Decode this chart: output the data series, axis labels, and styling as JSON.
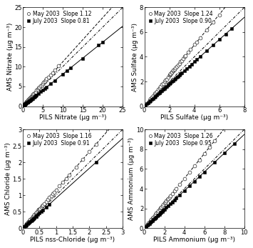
{
  "panels": [
    {
      "xlabel": "PILS Nitrate (μg m⁻³)",
      "ylabel": "AMS Nitrate (μg m⁻³)",
      "xlim": [
        0,
        25
      ],
      "ylim": [
        0,
        25
      ],
      "xticks": [
        0,
        5,
        10,
        15,
        20,
        25
      ],
      "yticks": [
        0,
        5,
        10,
        15,
        20,
        25
      ],
      "may_slope": 1.12,
      "july_slope": 0.81,
      "may_x": [
        0.1,
        0.15,
        0.2,
        0.25,
        0.3,
        0.35,
        0.4,
        0.5,
        0.5,
        0.6,
        0.7,
        0.8,
        0.9,
        1.0,
        1.1,
        1.2,
        1.3,
        1.5,
        1.6,
        1.8,
        2.0,
        2.1,
        2.3,
        2.5,
        2.5,
        2.7,
        3.0,
        3.2,
        3.5,
        3.8,
        4.0,
        4.2,
        4.5,
        4.8,
        5.0,
        5.2,
        5.5,
        5.8,
        6.0,
        6.5,
        7.0,
        7.5,
        8.0,
        9.0
      ],
      "may_y": [
        0.1,
        0.15,
        0.2,
        0.3,
        0.35,
        0.4,
        0.45,
        0.5,
        0.6,
        0.7,
        0.8,
        0.9,
        1.0,
        1.1,
        1.2,
        1.4,
        1.5,
        1.7,
        1.9,
        2.1,
        2.3,
        2.4,
        2.6,
        2.8,
        3.0,
        3.1,
        3.4,
        3.6,
        4.0,
        4.3,
        4.6,
        4.8,
        5.1,
        5.4,
        5.7,
        6.0,
        6.2,
        6.6,
        6.9,
        7.4,
        7.9,
        8.5,
        9.1,
        10.2
      ],
      "july_x": [
        0.1,
        0.2,
        0.3,
        0.4,
        0.5,
        0.6,
        0.7,
        0.8,
        0.9,
        1.0,
        1.2,
        1.3,
        1.5,
        1.6,
        1.8,
        2.0,
        2.2,
        2.4,
        2.5,
        2.8,
        3.0,
        3.2,
        3.5,
        4.0,
        4.5,
        5.0,
        5.5,
        6.0,
        7.0,
        8.0,
        10.0,
        11.0,
        12.0,
        15.0,
        19.0,
        20.0
      ],
      "july_y": [
        0.1,
        0.15,
        0.25,
        0.35,
        0.4,
        0.5,
        0.6,
        0.65,
        0.75,
        0.8,
        1.0,
        1.05,
        1.2,
        1.3,
        1.45,
        1.6,
        1.8,
        1.95,
        2.0,
        2.25,
        2.45,
        2.6,
        2.85,
        3.2,
        3.65,
        4.05,
        4.45,
        4.85,
        5.65,
        6.45,
        8.1,
        8.9,
        9.7,
        12.1,
        15.4,
        16.2
      ]
    },
    {
      "xlabel": "PILS Sulfate (μg m⁻³)",
      "ylabel": "AMS Sulfate (μg m⁻³)",
      "xlim": [
        0,
        8
      ],
      "ylim": [
        0,
        8
      ],
      "xticks": [
        0,
        2,
        4,
        6,
        8
      ],
      "yticks": [
        0,
        2,
        4,
        6,
        8
      ],
      "may_slope": 1.24,
      "july_slope": 0.9,
      "may_x": [
        0.3,
        0.4,
        0.5,
        0.6,
        0.7,
        0.8,
        0.9,
        1.0,
        1.1,
        1.2,
        1.3,
        1.4,
        1.5,
        1.6,
        1.7,
        1.8,
        1.9,
        2.0,
        2.0,
        2.1,
        2.1,
        2.2,
        2.2,
        2.3,
        2.3,
        2.4,
        2.5,
        2.6,
        2.7,
        2.8,
        2.9,
        3.0,
        3.1,
        3.2,
        3.3,
        3.5,
        3.7,
        4.0,
        4.2,
        4.5,
        5.0,
        5.5,
        6.0
      ],
      "may_y": [
        0.35,
        0.5,
        0.6,
        0.75,
        0.85,
        1.0,
        1.1,
        1.2,
        1.35,
        1.5,
        1.6,
        1.75,
        1.85,
        2.0,
        2.1,
        2.2,
        2.35,
        2.5,
        2.5,
        2.6,
        2.65,
        2.75,
        2.75,
        2.85,
        2.9,
        3.0,
        3.1,
        3.2,
        3.35,
        3.45,
        3.6,
        3.7,
        3.85,
        4.0,
        4.1,
        4.35,
        4.6,
        5.0,
        5.2,
        5.55,
        6.2,
        6.8,
        7.4
      ],
      "july_x": [
        0.1,
        0.2,
        0.3,
        0.4,
        0.5,
        0.6,
        0.7,
        0.8,
        0.9,
        1.0,
        1.1,
        1.2,
        1.3,
        1.4,
        1.5,
        1.6,
        1.7,
        1.8,
        1.9,
        2.0,
        2.1,
        2.2,
        2.3,
        2.4,
        2.5,
        2.6,
        2.7,
        2.8,
        2.9,
        3.0,
        3.2,
        3.4,
        3.6,
        3.8,
        4.0,
        4.2,
        4.5,
        5.0,
        5.5,
        6.0,
        6.5,
        7.0
      ],
      "july_y": [
        0.1,
        0.18,
        0.27,
        0.36,
        0.45,
        0.54,
        0.63,
        0.72,
        0.81,
        0.9,
        0.99,
        1.08,
        1.17,
        1.26,
        1.35,
        1.44,
        1.53,
        1.62,
        1.71,
        1.8,
        1.89,
        1.98,
        2.07,
        2.16,
        2.25,
        2.34,
        2.43,
        2.52,
        2.61,
        2.7,
        2.88,
        3.06,
        3.24,
        3.42,
        3.6,
        3.78,
        4.05,
        4.5,
        4.95,
        5.4,
        5.85,
        6.3
      ]
    },
    {
      "xlabel": "PILS nss-Chloride (μg m⁻³)",
      "ylabel": "AMS Chloride (μg m⁻³)",
      "xlim": [
        0,
        3.0
      ],
      "ylim": [
        0,
        3.0
      ],
      "xticks": [
        0,
        0.5,
        1.0,
        1.5,
        2.0,
        2.5,
        3.0
      ],
      "yticks": [
        0,
        0.5,
        1.0,
        1.5,
        2.0,
        2.5,
        3.0
      ],
      "may_slope": 1.16,
      "july_slope": 0.91,
      "may_x": [
        0.05,
        0.08,
        0.1,
        0.12,
        0.15,
        0.18,
        0.2,
        0.22,
        0.25,
        0.28,
        0.3,
        0.32,
        0.35,
        0.38,
        0.4,
        0.42,
        0.45,
        0.48,
        0.5,
        0.52,
        0.55,
        0.58,
        0.6,
        0.65,
        0.7,
        0.75,
        0.8,
        0.85,
        0.9,
        0.95,
        1.0,
        1.1,
        1.2,
        1.3,
        1.4,
        1.6,
        1.8,
        2.0,
        2.2
      ],
      "may_y": [
        0.06,
        0.09,
        0.12,
        0.14,
        0.17,
        0.2,
        0.23,
        0.26,
        0.29,
        0.32,
        0.35,
        0.37,
        0.41,
        0.44,
        0.46,
        0.49,
        0.52,
        0.56,
        0.58,
        0.6,
        0.64,
        0.67,
        0.7,
        0.75,
        0.81,
        0.87,
        0.93,
        0.99,
        1.04,
        1.1,
        1.16,
        1.28,
        1.39,
        1.51,
        1.62,
        1.86,
        2.09,
        2.32,
        2.55
      ],
      "july_x": [
        0.05,
        0.08,
        0.1,
        0.12,
        0.15,
        0.18,
        0.2,
        0.22,
        0.25,
        0.28,
        0.3,
        0.32,
        0.35,
        0.38,
        0.4,
        0.42,
        0.45,
        0.5,
        0.55,
        0.6,
        0.7,
        0.8,
        2.2
      ],
      "july_y": [
        0.04,
        0.07,
        0.09,
        0.11,
        0.14,
        0.16,
        0.18,
        0.2,
        0.23,
        0.25,
        0.27,
        0.29,
        0.32,
        0.35,
        0.36,
        0.38,
        0.41,
        0.46,
        0.5,
        0.55,
        0.64,
        0.73,
        2.0
      ]
    },
    {
      "xlabel": "PILS Ammonium (μg m⁻³)",
      "ylabel": "AMS Ammonium (μg m⁻³)",
      "xlim": [
        0,
        10
      ],
      "ylim": [
        0,
        10
      ],
      "xticks": [
        0,
        2,
        4,
        6,
        8,
        10
      ],
      "yticks": [
        0,
        2,
        4,
        6,
        8,
        10
      ],
      "may_slope": 1.26,
      "july_slope": 0.95,
      "may_x": [
        0.2,
        0.3,
        0.4,
        0.5,
        0.6,
        0.7,
        0.8,
        0.9,
        1.0,
        1.1,
        1.2,
        1.3,
        1.4,
        1.5,
        1.6,
        1.7,
        1.8,
        1.9,
        2.0,
        2.1,
        2.2,
        2.3,
        2.4,
        2.5,
        2.6,
        2.8,
        3.0,
        3.2,
        3.5,
        4.0,
        4.5,
        5.0,
        5.5,
        6.0,
        6.5,
        7.0
      ],
      "may_y": [
        0.25,
        0.38,
        0.5,
        0.63,
        0.76,
        0.88,
        1.0,
        1.13,
        1.26,
        1.39,
        1.51,
        1.64,
        1.76,
        1.89,
        2.02,
        2.14,
        2.27,
        2.39,
        2.52,
        2.65,
        2.77,
        2.9,
        3.02,
        3.15,
        3.28,
        3.53,
        3.78,
        4.03,
        4.41,
        5.04,
        5.67,
        6.3,
        6.93,
        7.56,
        8.19,
        8.82
      ],
      "july_x": [
        0.1,
        0.2,
        0.3,
        0.4,
        0.5,
        0.6,
        0.7,
        0.8,
        0.9,
        1.0,
        1.1,
        1.2,
        1.3,
        1.4,
        1.5,
        1.6,
        1.7,
        1.8,
        1.9,
        2.0,
        2.2,
        2.4,
        2.6,
        2.8,
        3.0,
        3.2,
        3.5,
        4.0,
        4.5,
        5.0,
        5.5,
        6.0,
        7.0,
        8.0,
        9.0
      ],
      "july_y": [
        0.1,
        0.19,
        0.29,
        0.38,
        0.48,
        0.57,
        0.67,
        0.76,
        0.86,
        0.95,
        1.05,
        1.14,
        1.24,
        1.33,
        1.43,
        1.52,
        1.62,
        1.71,
        1.81,
        1.9,
        2.09,
        2.28,
        2.47,
        2.66,
        2.85,
        3.04,
        3.33,
        3.8,
        4.28,
        4.75,
        5.23,
        5.7,
        6.65,
        7.6,
        8.55
      ]
    }
  ],
  "marker_size_open": 3.5,
  "marker_size_solid": 3.5,
  "line_color_may": "#000000",
  "line_color_july": "#000000",
  "one2one_color": "#000000",
  "fontsize_label": 6.5,
  "fontsize_legend": 5.5,
  "fontsize_tick": 6
}
